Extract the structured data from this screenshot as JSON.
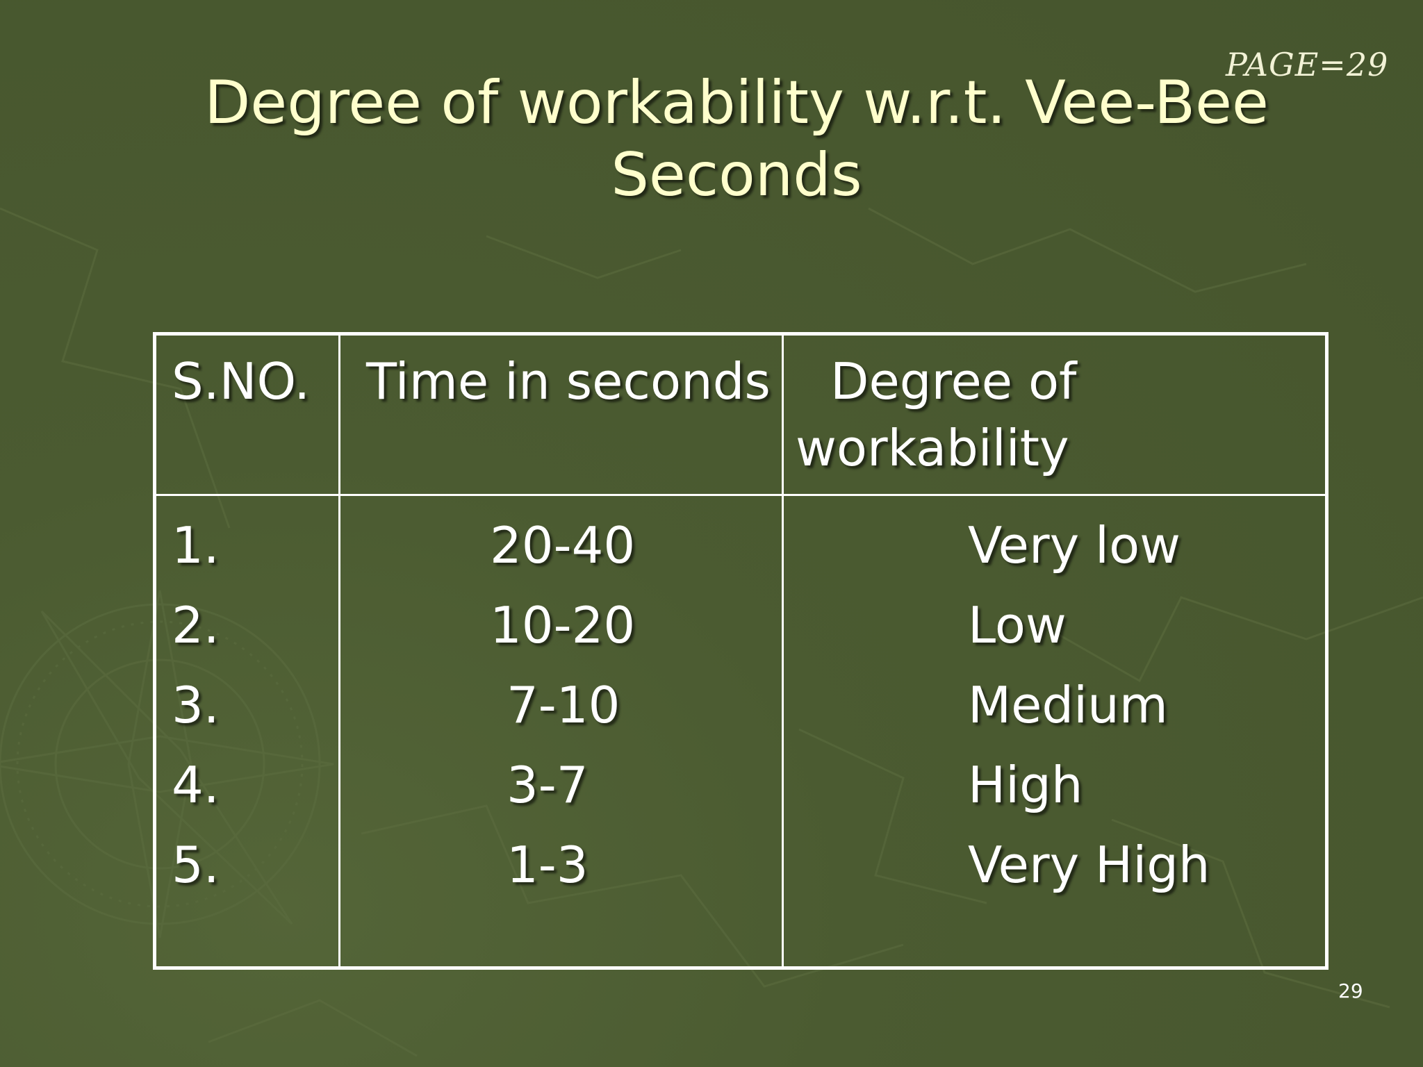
{
  "page_label": "PAGE=29",
  "title_line1": "Degree of workability w.r.t. Vee-Bee",
  "title_line2": "Seconds",
  "table": {
    "headers": {
      "sno": "S.NO.",
      "time": "Time in seconds",
      "degree_line1": "Degree of",
      "degree_line2": "workability"
    },
    "rows": [
      {
        "sno": "1.",
        "time": "20-40",
        "degree": "Very low"
      },
      {
        "sno": "2.",
        "time": "10-20",
        "degree": "Low"
      },
      {
        "sno": "3.",
        "time": "7-10",
        "degree": "Medium"
      },
      {
        "sno": "4.",
        "time": "3-7",
        "degree": "High"
      },
      {
        "sno": "5.",
        "time": "1-3",
        "degree": "Very High"
      }
    ]
  },
  "slide_number": "29",
  "colors": {
    "background": "#4a5a30",
    "title": "#ffffcc",
    "text": "#ffffff"
  }
}
